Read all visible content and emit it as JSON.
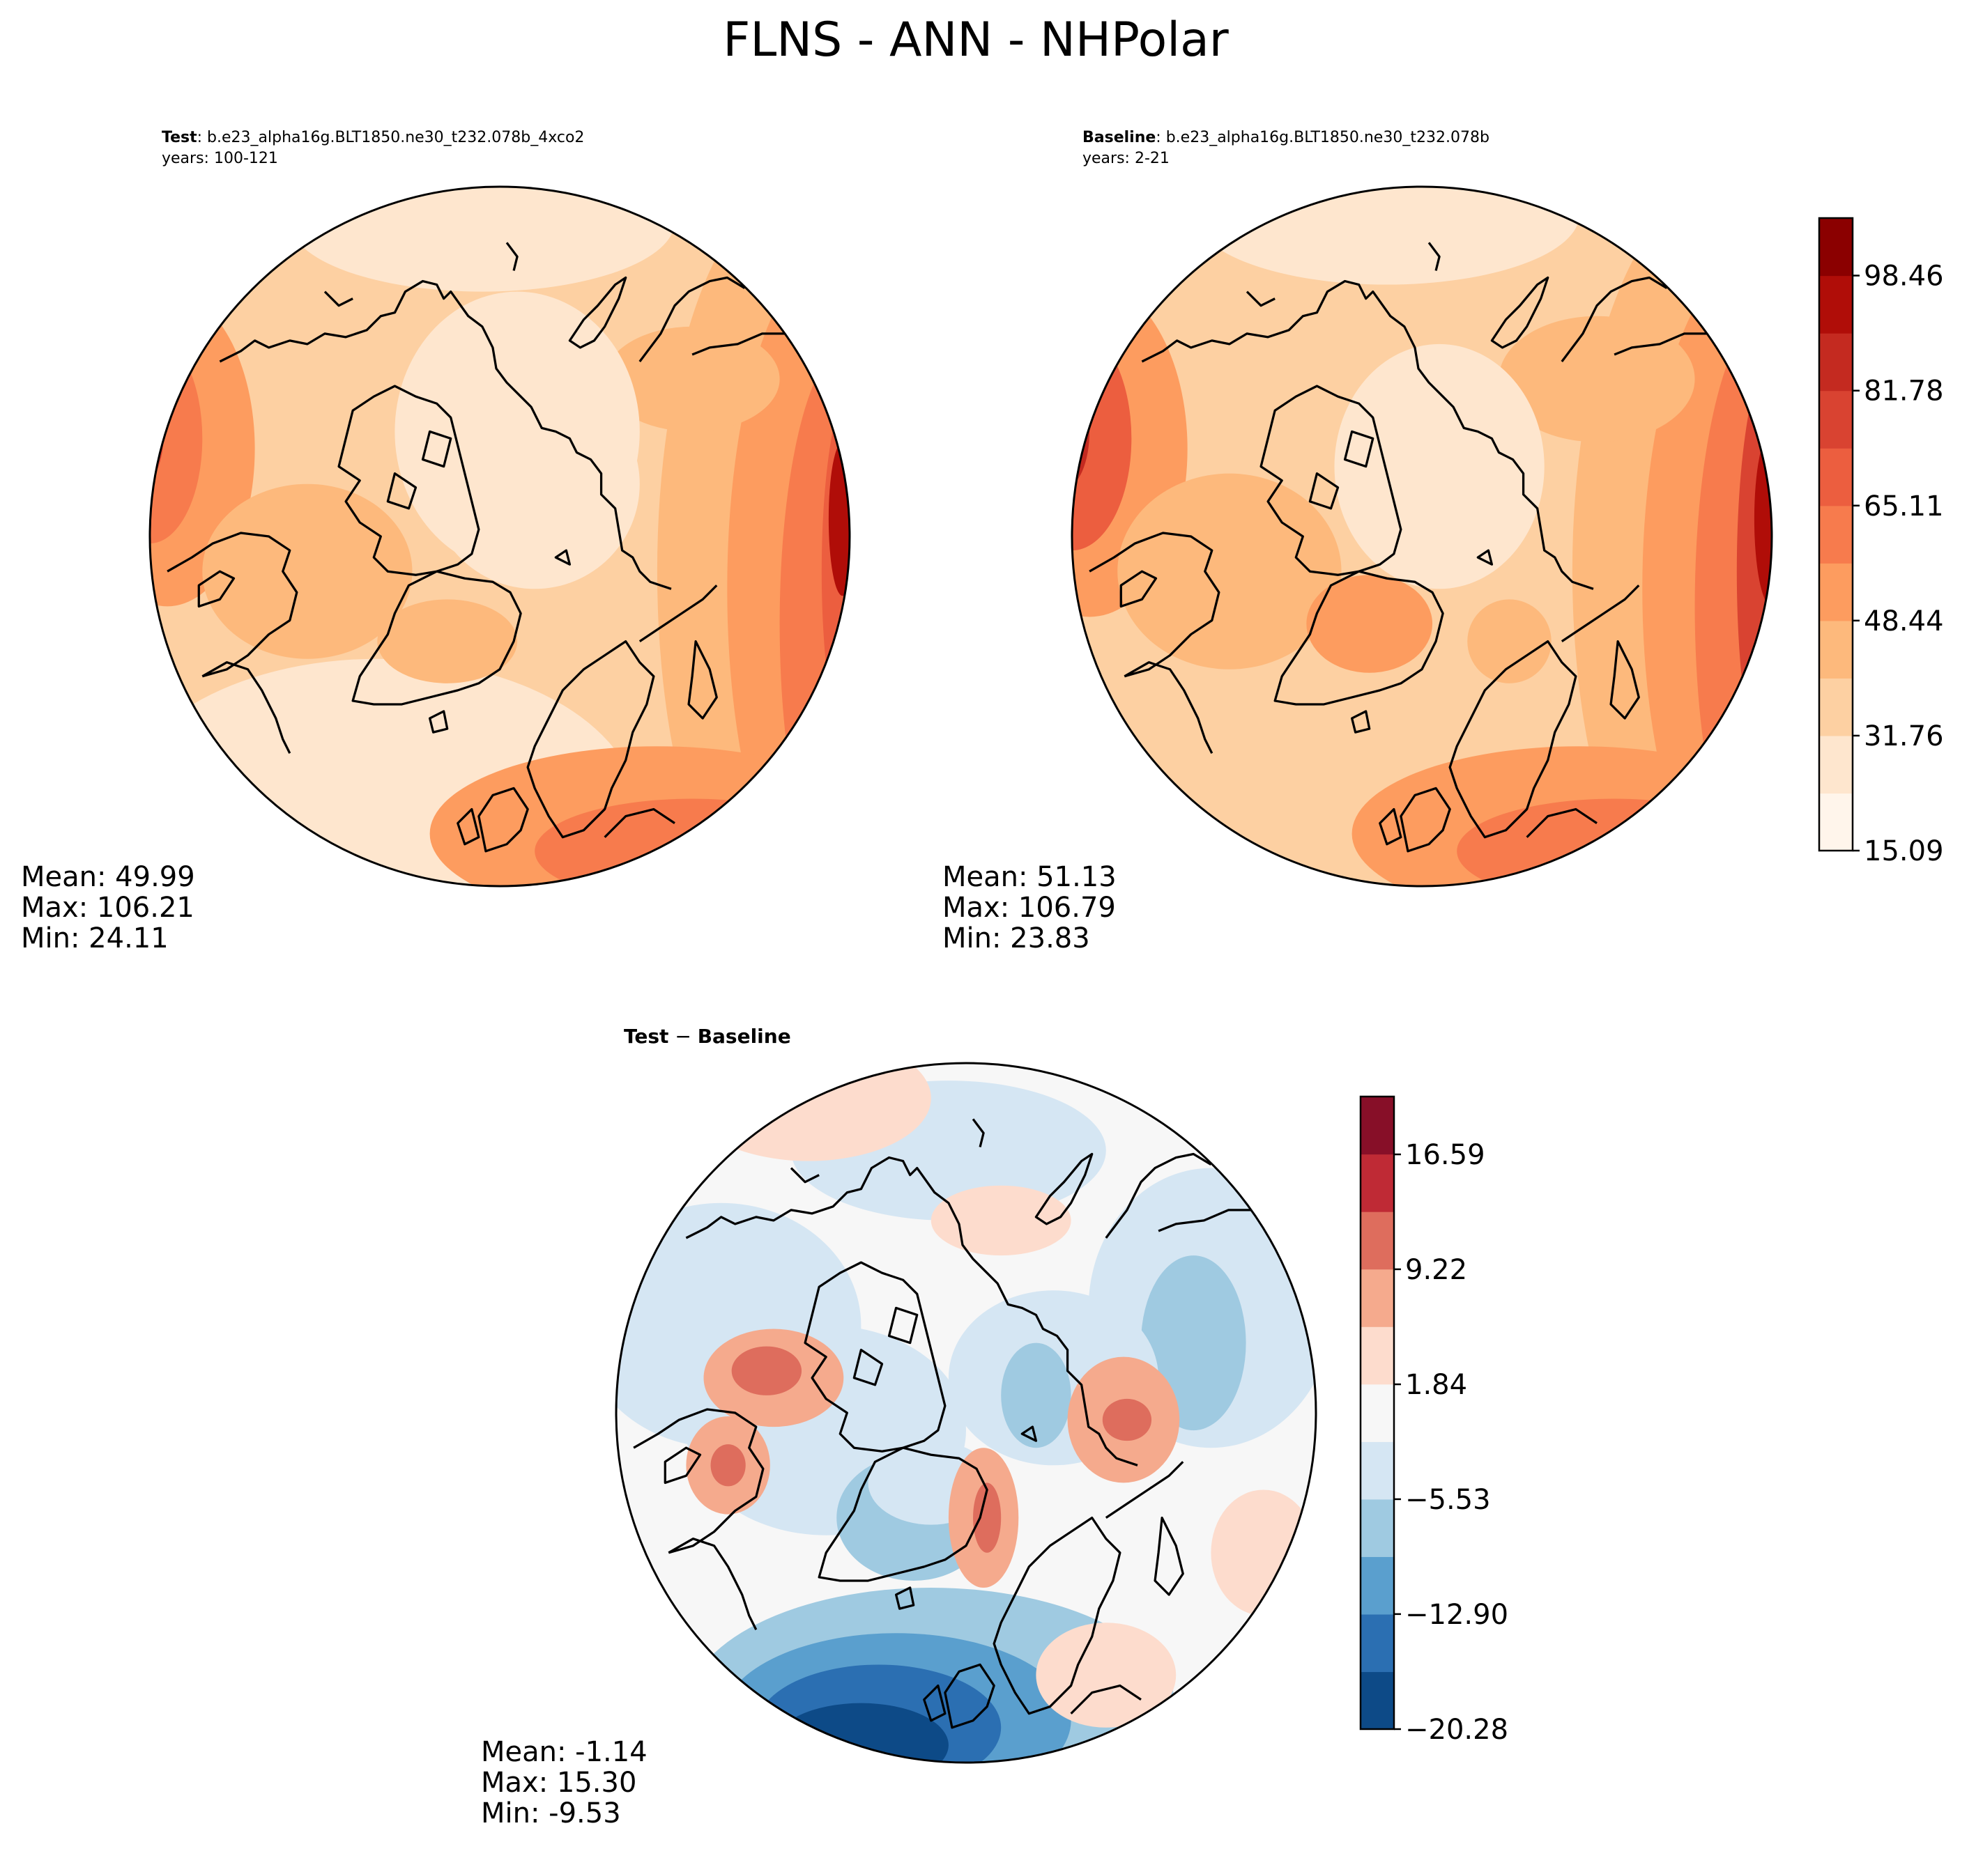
{
  "figure": {
    "title": "FLNS - ANN - NHPolar"
  },
  "chart_data": [
    {
      "type": "heatmap",
      "projection": "north-polar-stereographic",
      "label_bold": "Test",
      "label_rest": ": b.e23_alpha16g.BLT1850.ne30_t232.078b_4xco2",
      "years": "years: 100-121",
      "stats": [
        "Mean: 49.99",
        "Max: 106.21",
        "Min: 24.11"
      ],
      "colormap": "sequential-reds",
      "shared_colorbar": true
    },
    {
      "type": "heatmap",
      "projection": "north-polar-stereographic",
      "label_bold": "Baseline",
      "label_rest": ": b.e23_alpha16g.BLT1850.ne30_t232.078b",
      "years": "years: 2-21",
      "stats": [
        "Mean: 51.13",
        "Max: 106.79",
        "Min: 23.83"
      ],
      "colormap": "sequential-reds",
      "colorbar": {
        "range": [
          15.09,
          106.8
        ],
        "levels": 11,
        "ticks": [
          15.09,
          31.76,
          48.44,
          65.11,
          81.78,
          98.46
        ],
        "tick_labels": [
          "15.09",
          "31.76",
          "48.44",
          "65.11",
          "81.78",
          "98.46"
        ],
        "colors": [
          "#fff5eb",
          "#fee6ce",
          "#fdd0a2",
          "#fdb97c",
          "#fd9c5f",
          "#f77b4d",
          "#ec5e3f",
          "#d94331",
          "#c42a20",
          "#b00d08",
          "#8b0000"
        ]
      }
    },
    {
      "type": "heatmap",
      "projection": "north-polar-stereographic",
      "title_left": "Test",
      "title_sep": " − ",
      "title_right": "Baseline",
      "stats": [
        "Mean: -1.14",
        "Max: 15.30",
        "Min: -9.53"
      ],
      "colormap": "diverging-blue-red",
      "colorbar": {
        "range": [
          -20.28,
          20.3
        ],
        "levels": 11,
        "ticks": [
          -20.28,
          -12.9,
          -5.53,
          1.84,
          9.22,
          16.59
        ],
        "tick_labels": [
          "−20.28",
          "−12.90",
          "−5.53",
          "1.84",
          "9.22",
          "16.59"
        ],
        "colors": [
          "#0d4a87",
          "#2b6fb2",
          "#5a9fce",
          "#9fcae1",
          "#d5e6f3",
          "#f7f7f7",
          "#fddccd",
          "#f5aa8d",
          "#de6d5d",
          "#bf2a35",
          "#870f28"
        ]
      }
    }
  ]
}
